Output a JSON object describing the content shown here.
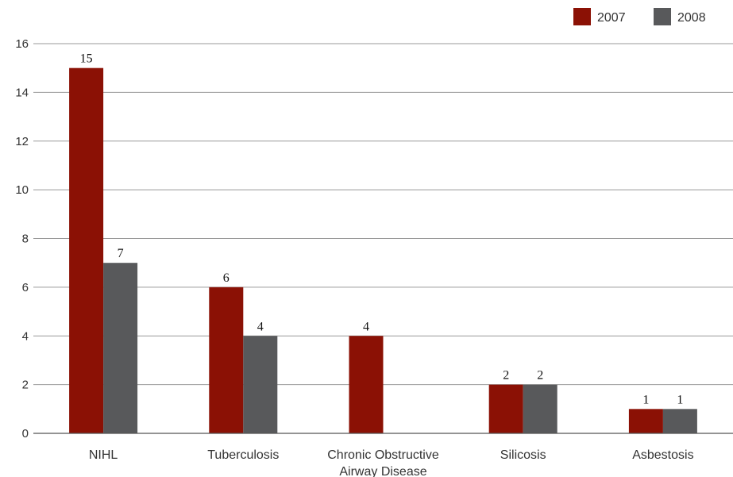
{
  "chart_data": {
    "type": "bar",
    "categories": [
      [
        "NIHL"
      ],
      [
        "Tuberculosis"
      ],
      [
        "Chronic Obstructive",
        "Airway Disease"
      ],
      [
        "Silicosis"
      ],
      [
        "Asbestosis"
      ]
    ],
    "series": [
      {
        "name": "2007",
        "color": "#8b1105",
        "values": [
          15,
          6,
          4,
          2,
          1
        ]
      },
      {
        "name": "2008",
        "color": "#58595b",
        "values": [
          7,
          4,
          null,
          2,
          1
        ]
      }
    ],
    "ylim": [
      0,
      16
    ],
    "yticks": [
      0,
      2,
      4,
      6,
      8,
      10,
      12,
      14,
      16
    ],
    "grid": true,
    "legend_position": "top-right",
    "title": "",
    "xlabel": "",
    "ylabel": ""
  }
}
